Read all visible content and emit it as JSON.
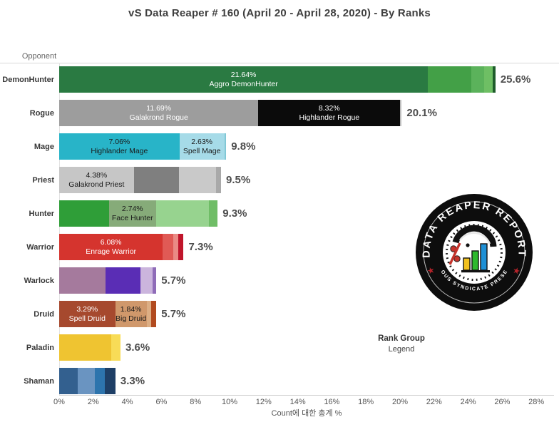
{
  "header": {
    "title": "vS Data Reaper #  160 (April 20 - April 28, 2020) - By Ranks"
  },
  "legend": {
    "heading": "Rank Group",
    "text": "Legend"
  },
  "logo": {
    "top_text": "DATA REAPER REPORT",
    "bottom_text": "VICIOUS SYNDICATE PRESENTS"
  },
  "chart_data": {
    "type": "bar",
    "orientation": "horizontal-stacked",
    "title": "vS Data Reaper #  160 (April 20 - April 28, 2020) - By Ranks",
    "xlabel": "Count에 대한 총계 %",
    "ylabel": "Opponent",
    "xlim": [
      0,
      28
    ],
    "grid": false,
    "x_ticks": [
      {
        "v": 0,
        "label": "0%"
      },
      {
        "v": 2,
        "label": "2%"
      },
      {
        "v": 4,
        "label": "4%"
      },
      {
        "v": 6,
        "label": "6%"
      },
      {
        "v": 8,
        "label": "8%"
      },
      {
        "v": 10,
        "label": "10%"
      },
      {
        "v": 12,
        "label": "12%"
      },
      {
        "v": 14,
        "label": "14%"
      },
      {
        "v": 16,
        "label": "16%"
      },
      {
        "v": 18,
        "label": "18%"
      },
      {
        "v": 20,
        "label": "20%"
      },
      {
        "v": 22,
        "label": "22%"
      },
      {
        "v": 24,
        "label": "24%"
      },
      {
        "v": 26,
        "label": "26%"
      },
      {
        "v": 28,
        "label": "28%"
      }
    ],
    "rows": [
      {
        "category": "DemonHunter",
        "total": 25.6,
        "total_label": "25.6%",
        "segments": [
          {
            "value": 21.64,
            "pct": "21.64%",
            "name": "Aggro DemonHunter",
            "color": "#2a7a42",
            "text": "light"
          },
          {
            "value": 2.56,
            "color": "#43a047"
          },
          {
            "value": 0.74,
            "color": "#5bb25b"
          },
          {
            "value": 0.5,
            "color": "#6ebf64"
          },
          {
            "value": 0.16,
            "color": "#1e5c2b"
          }
        ]
      },
      {
        "category": "Rogue",
        "total": 20.1,
        "total_label": "20.1%",
        "segments": [
          {
            "value": 11.69,
            "pct": "11.69%",
            "name": "Galakrond Rogue",
            "color": "#9d9d9d",
            "text": "light"
          },
          {
            "value": 8.32,
            "pct": "8.32%",
            "name": "Highlander Rogue",
            "color": "#0b0b0b",
            "text": "light"
          },
          {
            "value": 0.09,
            "color": "#bdbdbd"
          }
        ]
      },
      {
        "category": "Mage",
        "total": 9.8,
        "total_label": "9.8%",
        "segments": [
          {
            "value": 7.06,
            "pct": "7.06%",
            "name": "Highlander Mage",
            "color": "#28b4c8",
            "text": "dark"
          },
          {
            "value": 2.63,
            "pct": "2.63%",
            "name": "Spell Mage",
            "color": "#a6dbe8",
            "text": "dark"
          },
          {
            "value": 0.11,
            "color": "#82c8d6"
          }
        ]
      },
      {
        "category": "Priest",
        "total": 9.5,
        "total_label": "9.5%",
        "segments": [
          {
            "value": 4.38,
            "pct": "4.38%",
            "name": "Galakrond Priest",
            "color": "#c6c6c6",
            "text": "dark"
          },
          {
            "value": 2.66,
            "color": "#7f7f7f"
          },
          {
            "value": 2.17,
            "color": "#c9c9c9"
          },
          {
            "value": 0.29,
            "color": "#a9a9a9"
          }
        ]
      },
      {
        "category": "Hunter",
        "total": 9.3,
        "total_label": "9.3%",
        "segments": [
          {
            "value": 2.93,
            "color": "#2f9e38"
          },
          {
            "value": 2.74,
            "pct": "2.74%",
            "name": "Face Hunter",
            "color": "#86ab79",
            "text": "dark"
          },
          {
            "value": 3.1,
            "color": "#97d38f"
          },
          {
            "value": 0.53,
            "color": "#6fbd66"
          }
        ]
      },
      {
        "category": "Warrior",
        "total": 7.3,
        "total_label": "7.3%",
        "segments": [
          {
            "value": 6.08,
            "pct": "6.08%",
            "name": "Enrage Warrior",
            "color": "#d5342e",
            "text": "light"
          },
          {
            "value": 0.6,
            "color": "#e05a55"
          },
          {
            "value": 0.3,
            "color": "#ea8b85"
          },
          {
            "value": 0.32,
            "color": "#c0152b"
          }
        ]
      },
      {
        "category": "Warlock",
        "total": 5.7,
        "total_label": "5.7%",
        "segments": [
          {
            "value": 2.73,
            "color": "#a57a9d"
          },
          {
            "value": 2.02,
            "color": "#5a2db5"
          },
          {
            "value": 0.74,
            "color": "#cbb5dd"
          },
          {
            "value": 0.21,
            "color": "#8f6cb8"
          }
        ]
      },
      {
        "category": "Druid",
        "total": 5.7,
        "total_label": "5.7%",
        "segments": [
          {
            "value": 3.29,
            "pct": "3.29%",
            "name": "Spell Druid",
            "color": "#a6492e",
            "text": "light"
          },
          {
            "value": 1.84,
            "pct": "1.84%",
            "name": "Big Druid",
            "color": "#d0986b",
            "text": "dark"
          },
          {
            "value": 0.25,
            "color": "#dcae84"
          },
          {
            "value": 0.32,
            "color": "#b14a1f"
          }
        ]
      },
      {
        "category": "Paladin",
        "total": 3.6,
        "total_label": "3.6%",
        "segments": [
          {
            "value": 3.06,
            "color": "#efc431"
          },
          {
            "value": 0.54,
            "color": "#f8dc57"
          }
        ]
      },
      {
        "category": "Shaman",
        "total": 3.3,
        "total_label": "3.3%",
        "segments": [
          {
            "value": 1.1,
            "color": "#33608f"
          },
          {
            "value": 1.0,
            "color": "#6a94c1"
          },
          {
            "value": 0.58,
            "color": "#2d74ad"
          },
          {
            "value": 0.62,
            "color": "#1e3f66"
          }
        ]
      }
    ]
  }
}
